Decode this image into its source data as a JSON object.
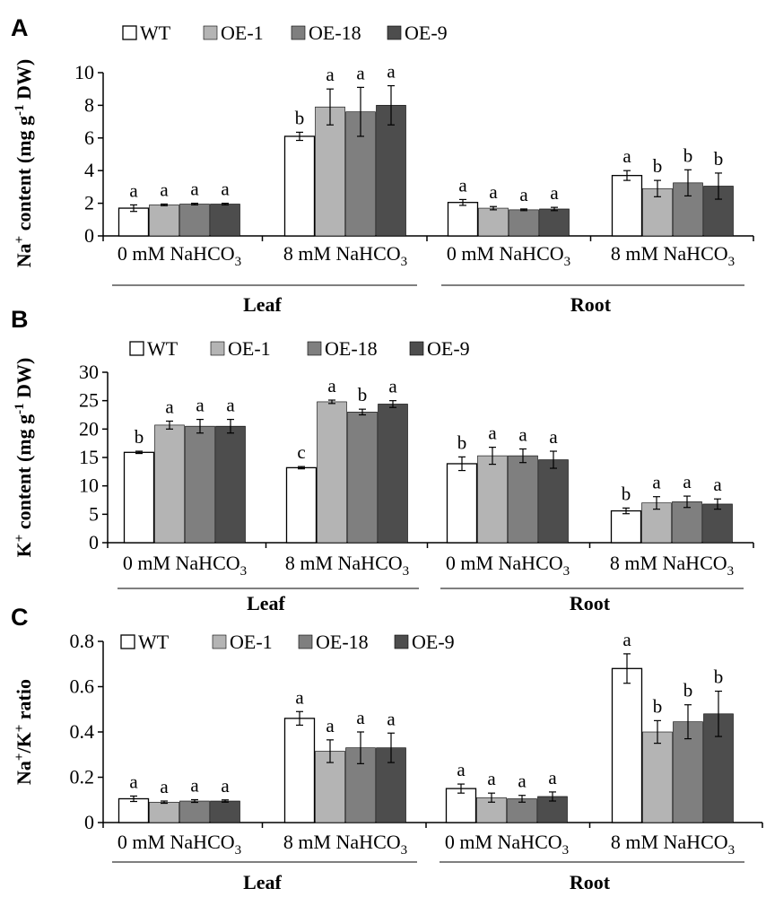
{
  "chart_data": [
    {
      "type": "bar",
      "panel": "A",
      "ylabel": "Na+ content (mg g-1 DW)",
      "ylabel_parts": {
        "pre": "Na",
        "sup1": "+",
        "mid": " content  (mg g",
        "sup2": "-1",
        "post": " DW)"
      },
      "ylim": [
        0,
        10
      ],
      "yticks": [
        "0",
        "2",
        "4",
        "6",
        "8",
        "10"
      ],
      "legend": [
        "WT",
        "OE-1",
        "OE-18",
        "OE-9"
      ],
      "categories": [
        "Leaf 0 mM NaHCO3",
        "Leaf 8 mM NaHCO3",
        "Root 0 mM NaHCO3",
        "Root 8 mM NaHCO3"
      ],
      "category_labels": [
        {
          "dose": "0 mM",
          "salt": "NaHCO",
          "sub": "3"
        },
        {
          "dose": "8 mM",
          "salt": "NaHCO",
          "sub": "3"
        },
        {
          "dose": "0 mM",
          "salt": "NaHCO",
          "sub": "3"
        },
        {
          "dose": "8 mM",
          "salt": "NaHCO",
          "sub": "3"
        }
      ],
      "groups": [
        "Leaf",
        "Root"
      ],
      "series": [
        {
          "name": "WT",
          "values": [
            1.7,
            6.1,
            2.05,
            3.7
          ],
          "errors": [
            0.2,
            0.25,
            0.18,
            0.3
          ],
          "letters": [
            "a",
            "b",
            "a",
            "a"
          ]
        },
        {
          "name": "OE-1",
          "values": [
            1.9,
            7.9,
            1.7,
            2.9
          ],
          "errors": [
            0.05,
            1.1,
            0.1,
            0.5
          ],
          "letters": [
            "a",
            "a",
            "a",
            "b"
          ]
        },
        {
          "name": "OE-18",
          "values": [
            1.95,
            7.6,
            1.6,
            3.25
          ],
          "errors": [
            0.05,
            1.5,
            0.05,
            0.8
          ],
          "letters": [
            "a",
            "a",
            "a",
            "b"
          ]
        },
        {
          "name": "OE-9",
          "values": [
            1.95,
            8.0,
            1.65,
            3.05
          ],
          "errors": [
            0.05,
            1.2,
            0.1,
            0.8
          ],
          "letters": [
            "a",
            "a",
            "a",
            "b"
          ]
        }
      ]
    },
    {
      "type": "bar",
      "panel": "B",
      "ylabel": "K+ content (mg g-1 DW)",
      "ylabel_parts": {
        "pre": "K",
        "sup1": "+",
        "mid": " content  (mg g",
        "sup2": "-1",
        "post": " DW)"
      },
      "ylim": [
        0,
        30
      ],
      "yticks": [
        "0",
        "5",
        "10",
        "15",
        "20",
        "25",
        "30"
      ],
      "legend": [
        "WT",
        "OE-1",
        "OE-18",
        "OE-9"
      ],
      "categories": [
        "Leaf 0 mM NaHCO3",
        "Leaf 8 mM NaHCO3",
        "Root 0 mM NaHCO3",
        "Root 8 mM NaHCO3"
      ],
      "category_labels": [
        {
          "dose": "0 mM",
          "salt": "NaHCO",
          "sub": "3"
        },
        {
          "dose": "8 mM",
          "salt": "NaHCO",
          "sub": "3"
        },
        {
          "dose": "0 mM",
          "salt": "NaHCO",
          "sub": "3"
        },
        {
          "dose": "8 mM",
          "salt": "NaHCO",
          "sub": "3"
        }
      ],
      "groups": [
        "Leaf",
        "Root"
      ],
      "series": [
        {
          "name": "WT",
          "values": [
            15.9,
            13.2,
            13.9,
            5.6
          ],
          "errors": [
            0.2,
            0.2,
            1.2,
            0.5
          ],
          "letters": [
            "b",
            "c",
            "b",
            "b"
          ]
        },
        {
          "name": "OE-1",
          "values": [
            20.7,
            24.8,
            15.3,
            7.0
          ],
          "errors": [
            0.7,
            0.3,
            1.5,
            1.1
          ],
          "letters": [
            "a",
            "a",
            "a",
            "a"
          ]
        },
        {
          "name": "OE-18",
          "values": [
            20.5,
            23.0,
            15.3,
            7.2
          ],
          "errors": [
            1.2,
            0.5,
            1.2,
            1.0
          ],
          "letters": [
            "a",
            "b",
            "a",
            "a"
          ]
        },
        {
          "name": "OE-9",
          "values": [
            20.5,
            24.4,
            14.6,
            6.8
          ],
          "errors": [
            1.2,
            0.6,
            1.5,
            0.9
          ],
          "letters": [
            "a",
            "a",
            "a",
            "a"
          ]
        }
      ]
    },
    {
      "type": "bar",
      "panel": "C",
      "ylabel": "Na+/K+ ratio",
      "ylabel_parts": {
        "pre": "Na",
        "sup1": "+",
        "mid": "/K",
        "sup2": "+",
        "post": " ratio"
      },
      "ylim": [
        0,
        0.8
      ],
      "yticks": [
        "0",
        "0.2",
        "0.4",
        "0.6",
        "0.8"
      ],
      "legend": [
        "WT",
        "OE-1",
        "OE-18",
        "OE-9"
      ],
      "categories": [
        "Leaf 0 mM NaHCO3",
        "Leaf 8 mM NaHCO3",
        "Root 0 mM NaHCO3",
        "Root 8 mM NaHCO3"
      ],
      "category_labels": [
        {
          "dose": "0 mM",
          "salt": "NaHCO",
          "sub": "3"
        },
        {
          "dose": "8 mM",
          "salt": "NaHCO",
          "sub": "3"
        },
        {
          "dose": "0 mM",
          "salt": "NaHCO",
          "sub": "3"
        },
        {
          "dose": "8 mM",
          "salt": "NaHCO",
          "sub": "3"
        }
      ],
      "groups": [
        "Leaf",
        "Root"
      ],
      "series": [
        {
          "name": "WT",
          "values": [
            0.105,
            0.46,
            0.15,
            0.68
          ],
          "errors": [
            0.012,
            0.03,
            0.02,
            0.065
          ],
          "letters": [
            "a",
            "a",
            "a",
            "a"
          ]
        },
        {
          "name": "OE-1",
          "values": [
            0.09,
            0.315,
            0.11,
            0.4
          ],
          "errors": [
            0.005,
            0.05,
            0.02,
            0.05
          ],
          "letters": [
            "a",
            "a",
            "a",
            "b"
          ]
        },
        {
          "name": "OE-18",
          "values": [
            0.095,
            0.33,
            0.105,
            0.445
          ],
          "errors": [
            0.006,
            0.07,
            0.015,
            0.075
          ],
          "letters": [
            "a",
            "a",
            "a",
            "b"
          ]
        },
        {
          "name": "OE-9",
          "values": [
            0.095,
            0.33,
            0.115,
            0.48
          ],
          "errors": [
            0.005,
            0.065,
            0.02,
            0.1
          ],
          "letters": [
            "a",
            "a",
            "a",
            "b"
          ]
        }
      ]
    }
  ],
  "colors": {
    "WT": "#ffffff",
    "OE-1": "#b4b4b4",
    "OE-18": "#7f7f7f",
    "OE-9": "#4d4d4d",
    "stroke": "#000000",
    "bracket": "#555555"
  }
}
